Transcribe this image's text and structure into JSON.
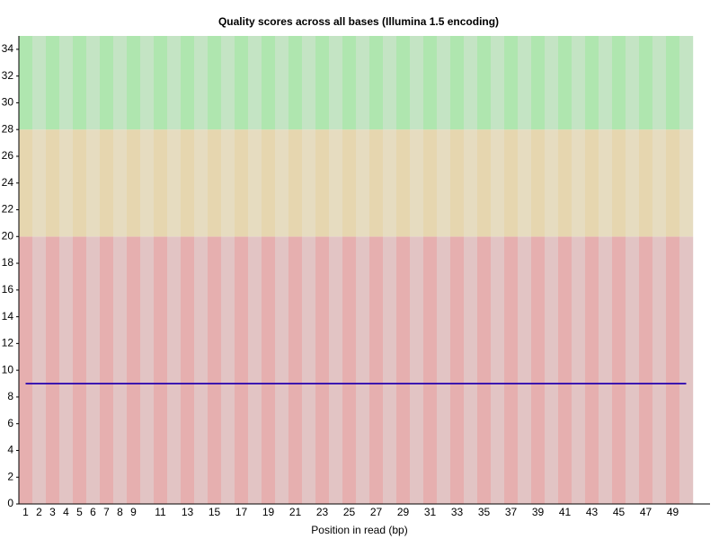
{
  "chart_data": {
    "type": "line",
    "title": "Quality scores across all bases (Illumina 1.5 encoding)",
    "x_label": "Position in read (bp)",
    "categories": [
      "1",
      "2",
      "3",
      "4",
      "5",
      "6",
      "7",
      "8",
      "9",
      null,
      "11",
      null,
      "13",
      null,
      "15",
      null,
      "17",
      null,
      "19",
      null,
      "21",
      null,
      "23",
      null,
      "25",
      null,
      "27",
      null,
      "29",
      null,
      "31",
      null,
      "33",
      null,
      "35",
      null,
      "37",
      null,
      "39",
      null,
      "41",
      null,
      "43",
      null,
      "45",
      null,
      "47",
      null,
      "49",
      null
    ],
    "series": [
      {
        "color": "#ff0000",
        "values": [
          9,
          9,
          9,
          9,
          9,
          9,
          9,
          9,
          9,
          9,
          9,
          9,
          9,
          9,
          9,
          9,
          9,
          9,
          9,
          9,
          9,
          9,
          9,
          9,
          9,
          9,
          9,
          9,
          9,
          9,
          9,
          9,
          9,
          9,
          9,
          9,
          9,
          9,
          9,
          9,
          9,
          9,
          9,
          9,
          9,
          9,
          9,
          9,
          9,
          9
        ]
      },
      {
        "color": "#0000cc",
        "values": [
          9,
          9,
          9,
          9,
          9,
          9,
          9,
          9,
          9,
          9,
          9,
          9,
          9,
          9,
          9,
          9,
          9,
          9,
          9,
          9,
          9,
          9,
          9,
          9,
          9,
          9,
          9,
          9,
          9,
          9,
          9,
          9,
          9,
          9,
          9,
          9,
          9,
          9,
          9,
          9,
          9,
          9,
          9,
          9,
          9,
          9,
          9,
          9,
          9,
          9
        ]
      }
    ],
    "bands": [
      {
        "range": [
          0,
          20
        ],
        "colors": [
          "#e6afaf",
          "#e2c4c4"
        ]
      },
      {
        "range": [
          20,
          28
        ],
        "colors": [
          "#e6d6af",
          "#e6dcc0"
        ]
      },
      {
        "range": [
          28,
          35
        ],
        "colors": [
          "#afe6af",
          "#c4e4c4"
        ]
      }
    ],
    "ylim": [
      0,
      35
    ],
    "yticks": [
      0,
      2,
      4,
      6,
      8,
      10,
      12,
      14,
      16,
      18,
      20,
      22,
      24,
      26,
      28,
      30,
      32,
      34
    ]
  }
}
